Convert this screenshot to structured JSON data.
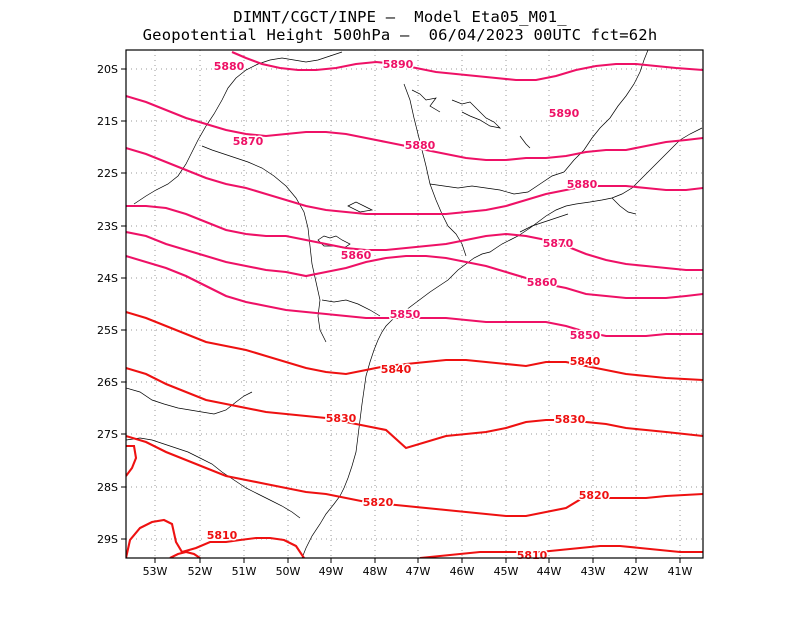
{
  "header": {
    "line1": "DIMNT/CGCT/INPE —  Model Eta05_M01_",
    "line2": "Geopotential Height 500hPa —  06/04/2023 00UTC fct=62h"
  },
  "axes": {
    "lat_labels": [
      "20S",
      "21S",
      "22S",
      "23S",
      "24S",
      "25S",
      "26S",
      "27S",
      "28S",
      "29S"
    ],
    "lon_labels": [
      "53W",
      "52W",
      "51W",
      "50W",
      "49W",
      "48W",
      "47W",
      "46W",
      "45W",
      "44W",
      "43W",
      "42W",
      "41W"
    ]
  },
  "colors": {
    "contour_red": "#ee1111",
    "contour_pink": "#ee1166",
    "coast": "#000000",
    "grid": "#9a9a9a"
  },
  "contours": {
    "labels": [
      {
        "text": "5880"
      },
      {
        "text": "5890"
      },
      {
        "text": "5890"
      },
      {
        "text": "5870"
      },
      {
        "text": "5880"
      },
      {
        "text": "5880"
      },
      {
        "text": "5870"
      },
      {
        "text": "5860"
      },
      {
        "text": "5860"
      },
      {
        "text": "5850"
      },
      {
        "text": "5850"
      },
      {
        "text": "5840"
      },
      {
        "text": "5840"
      },
      {
        "text": "5830"
      },
      {
        "text": "5830"
      },
      {
        "text": "5820"
      },
      {
        "text": "5820"
      },
      {
        "text": "5810"
      },
      {
        "text": "5810"
      }
    ]
  }
}
